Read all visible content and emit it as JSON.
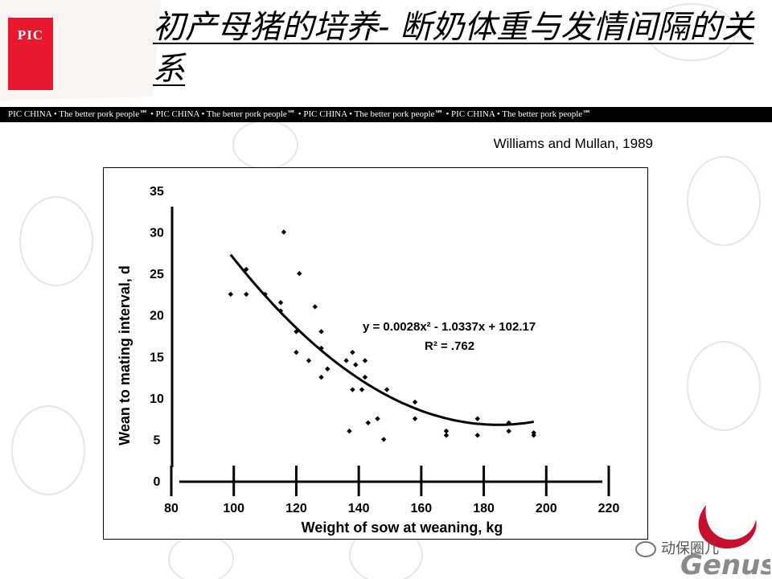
{
  "slide": {
    "logo_text": "PIC",
    "title": "初产母猪的培养- 断奶体重与发情间隔的关系",
    "banner_text": "PIC CHINA  •  The better pork people℠  •  PIC CHINA  •  The better pork people℠  •  PIC CHINA  •  The better pork people℠  •  PIC CHINA  •  The better pork people℠",
    "citation": "Williams and Mullan, 1989",
    "watermark_text": "动保圈儿",
    "brand": "Genus"
  },
  "colors": {
    "logo_red": "#e8182f",
    "banner_bg": "#000000",
    "genus_red": "#c8102e",
    "genus_gray": "#8a8a8a"
  },
  "chart_data": {
    "type": "scatter",
    "title": "",
    "xlabel": "Weight of sow at weaning,  kg",
    "ylabel": "Wean to mating interval, d",
    "xlim": [
      80,
      220
    ],
    "ylim": [
      0,
      35
    ],
    "x_ticks": [
      "80",
      "100",
      "120",
      "140",
      "160",
      "180",
      "200",
      "220"
    ],
    "y_ticks": [
      "0",
      "5",
      "10",
      "15",
      "20",
      "25",
      "30",
      "35"
    ],
    "grid": false,
    "points": [
      {
        "x": 99,
        "y": 22.5
      },
      {
        "x": 104,
        "y": 22.5
      },
      {
        "x": 104,
        "y": 25.5
      },
      {
        "x": 110,
        "y": 22.5
      },
      {
        "x": 115,
        "y": 21.5
      },
      {
        "x": 115,
        "y": 20.5
      },
      {
        "x": 116,
        "y": 30
      },
      {
        "x": 120,
        "y": 15.5
      },
      {
        "x": 120,
        "y": 18
      },
      {
        "x": 121,
        "y": 25
      },
      {
        "x": 124,
        "y": 14.5
      },
      {
        "x": 126,
        "y": 21
      },
      {
        "x": 128,
        "y": 18
      },
      {
        "x": 128,
        "y": 16
      },
      {
        "x": 128,
        "y": 12.5
      },
      {
        "x": 130,
        "y": 13.5
      },
      {
        "x": 136,
        "y": 14.5
      },
      {
        "x": 137,
        "y": 6
      },
      {
        "x": 138,
        "y": 11
      },
      {
        "x": 138,
        "y": 15.5
      },
      {
        "x": 139,
        "y": 14
      },
      {
        "x": 141,
        "y": 11
      },
      {
        "x": 142,
        "y": 12.5
      },
      {
        "x": 142,
        "y": 14.5
      },
      {
        "x": 143,
        "y": 7
      },
      {
        "x": 146,
        "y": 7.5
      },
      {
        "x": 148,
        "y": 5
      },
      {
        "x": 149,
        "y": 11
      },
      {
        "x": 158,
        "y": 9.5
      },
      {
        "x": 158,
        "y": 7.5
      },
      {
        "x": 168,
        "y": 6
      },
      {
        "x": 168,
        "y": 5.5
      },
      {
        "x": 178,
        "y": 7.5
      },
      {
        "x": 178,
        "y": 5.5
      },
      {
        "x": 188,
        "y": 7
      },
      {
        "x": 188,
        "y": 6
      },
      {
        "x": 196,
        "y": 5.5
      },
      {
        "x": 196,
        "y": 5.8
      }
    ],
    "trendline": {
      "a": 0.0028,
      "b": -1.0337,
      "c": 102.17,
      "x_from": 99,
      "x_to": 196
    },
    "equation": "y = 0.0028x² - 1.0337x + 102.17",
    "r_squared": "R² = .762"
  }
}
